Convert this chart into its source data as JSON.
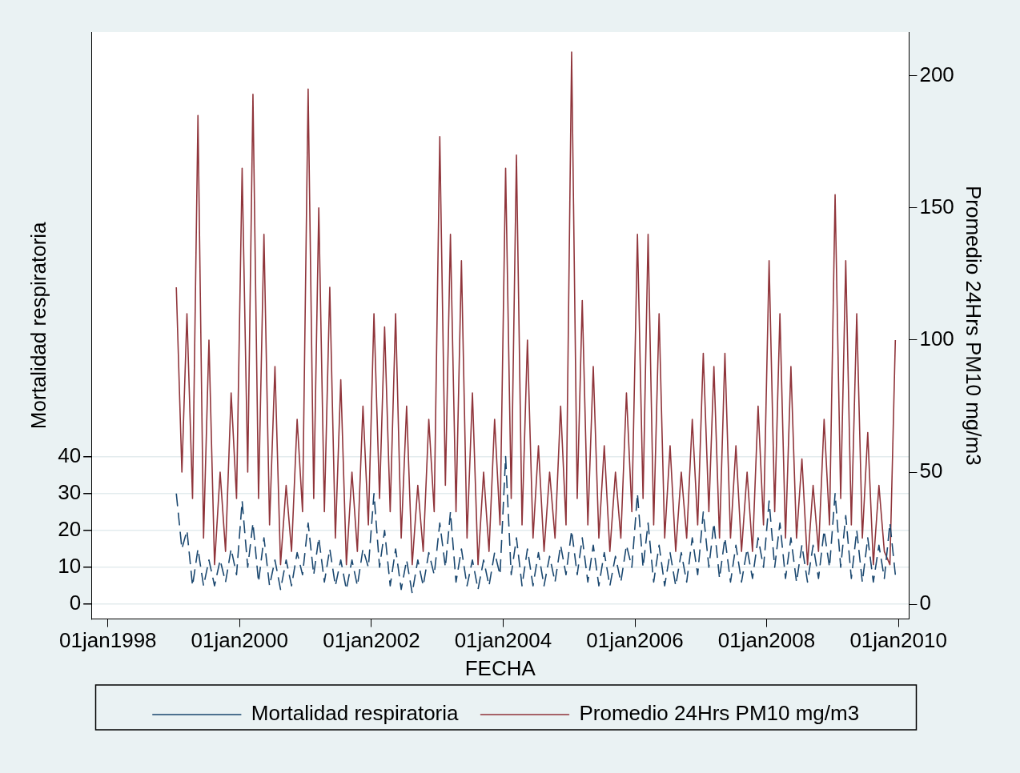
{
  "chart_data": {
    "type": "line",
    "xlabel": "FECHA",
    "ylabel": "Mortalidad respiratoria",
    "y2label": "Promedio 24Hrs PM10 mg/m3",
    "x": [
      "1999-01-15",
      "1999-02-15",
      "1999-03-15",
      "1999-04-15",
      "1999-05-15",
      "1999-06-15",
      "1999-07-15",
      "1999-08-15",
      "1999-09-15",
      "1999-10-15",
      "1999-11-15",
      "1999-12-15",
      "2000-01-15",
      "2000-02-15",
      "2000-03-15",
      "2000-04-15",
      "2000-05-15",
      "2000-06-15",
      "2000-07-15",
      "2000-08-15",
      "2000-09-15",
      "2000-10-15",
      "2000-11-15",
      "2000-12-15",
      "2001-01-15",
      "2001-02-15",
      "2001-03-15",
      "2001-04-15",
      "2001-05-15",
      "2001-06-15",
      "2001-07-15",
      "2001-08-15",
      "2001-09-15",
      "2001-10-15",
      "2001-11-15",
      "2001-12-15",
      "2002-01-15",
      "2002-02-15",
      "2002-03-15",
      "2002-04-15",
      "2002-05-15",
      "2002-06-15",
      "2002-07-15",
      "2002-08-15",
      "2002-09-15",
      "2002-10-15",
      "2002-11-15",
      "2002-12-15",
      "2003-01-15",
      "2003-02-15",
      "2003-03-15",
      "2003-04-15",
      "2003-05-15",
      "2003-06-15",
      "2003-07-15",
      "2003-08-15",
      "2003-09-15",
      "2003-10-15",
      "2003-11-15",
      "2003-12-15",
      "2004-01-15",
      "2004-02-15",
      "2004-03-15",
      "2004-04-15",
      "2004-05-15",
      "2004-06-15",
      "2004-07-15",
      "2004-08-15",
      "2004-09-15",
      "2004-10-15",
      "2004-11-15",
      "2004-12-15",
      "2005-01-15",
      "2005-02-15",
      "2005-03-15",
      "2005-04-15",
      "2005-05-15",
      "2005-06-15",
      "2005-07-15",
      "2005-08-15",
      "2005-09-15",
      "2005-10-15",
      "2005-11-15",
      "2005-12-15",
      "2006-01-15",
      "2006-02-15",
      "2006-03-15",
      "2006-04-15",
      "2006-05-15",
      "2006-06-15",
      "2006-07-15",
      "2006-08-15",
      "2006-09-15",
      "2006-10-15",
      "2006-11-15",
      "2006-12-15",
      "2007-01-15",
      "2007-02-15",
      "2007-03-15",
      "2007-04-15",
      "2007-05-15",
      "2007-06-15",
      "2007-07-15",
      "2007-08-15",
      "2007-09-15",
      "2007-10-15",
      "2007-11-15",
      "2007-12-15",
      "2008-01-15",
      "2008-02-15",
      "2008-03-15",
      "2008-04-15",
      "2008-05-15",
      "2008-06-15",
      "2008-07-15",
      "2008-08-15",
      "2008-09-15",
      "2008-10-15",
      "2008-11-15",
      "2008-12-15",
      "2009-01-15",
      "2009-02-15",
      "2009-03-15",
      "2009-04-15",
      "2009-05-15",
      "2009-06-15",
      "2009-07-15",
      "2009-08-15",
      "2009-09-15",
      "2009-10-15",
      "2009-11-15",
      "2009-12-15"
    ],
    "series": [
      {
        "name": "Mortalidad respiratoria",
        "color": "#1a476f",
        "line_style": "dashed",
        "values": [
          30,
          15,
          20,
          5,
          15,
          5,
          12,
          5,
          12,
          6,
          15,
          8,
          28,
          10,
          22,
          6,
          18,
          5,
          12,
          4,
          12,
          5,
          14,
          8,
          22,
          8,
          18,
          6,
          15,
          5,
          12,
          4,
          12,
          5,
          15,
          10,
          30,
          10,
          20,
          5,
          15,
          4,
          12,
          3,
          12,
          5,
          14,
          8,
          22,
          10,
          25,
          6,
          15,
          5,
          12,
          4,
          12,
          5,
          14,
          8,
          40,
          8,
          18,
          5,
          15,
          5,
          14,
          5,
          13,
          6,
          16,
          8,
          20,
          8,
          18,
          6,
          16,
          5,
          14,
          5,
          13,
          6,
          16,
          10,
          30,
          10,
          22,
          6,
          16,
          5,
          14,
          5,
          14,
          6,
          18,
          8,
          25,
          10,
          22,
          7,
          18,
          6,
          16,
          6,
          15,
          7,
          18,
          10,
          28,
          10,
          22,
          7,
          18,
          6,
          16,
          6,
          16,
          7,
          20,
          10,
          30,
          10,
          24,
          7,
          20,
          6,
          18,
          6,
          16,
          7,
          22,
          8
        ]
      },
      {
        "name": "Promedio 24Hrs PM10 mg/m3",
        "color": "#90353b",
        "axis": "y2",
        "line_style": "solid",
        "values": [
          120,
          50,
          110,
          40,
          185,
          25,
          100,
          15,
          50,
          20,
          80,
          40,
          165,
          50,
          193,
          40,
          140,
          30,
          90,
          15,
          45,
          20,
          70,
          35,
          195,
          40,
          150,
          35,
          120,
          25,
          85,
          15,
          50,
          20,
          75,
          30,
          110,
          40,
          105,
          35,
          110,
          25,
          75,
          15,
          45,
          20,
          70,
          35,
          177,
          45,
          140,
          35,
          130,
          25,
          80,
          15,
          50,
          20,
          70,
          30,
          165,
          40,
          170,
          30,
          100,
          25,
          60,
          20,
          50,
          25,
          75,
          30,
          209,
          40,
          115,
          30,
          90,
          25,
          60,
          20,
          50,
          25,
          80,
          35,
          140,
          40,
          140,
          30,
          110,
          25,
          60,
          20,
          50,
          25,
          70,
          30,
          95,
          35,
          90,
          25,
          95,
          25,
          60,
          20,
          50,
          20,
          75,
          30,
          130,
          35,
          110,
          25,
          90,
          25,
          55,
          15,
          45,
          20,
          70,
          30,
          155,
          40,
          130,
          30,
          110,
          25,
          65,
          15,
          45,
          20,
          15,
          100
        ]
      }
    ],
    "xlim": [
      "1997-10-01",
      "2010-03-01"
    ],
    "xticks": [
      {
        "value": "1998-01-01",
        "label": "01jan1998"
      },
      {
        "value": "2000-01-01",
        "label": "01jan2000"
      },
      {
        "value": "2002-01-01",
        "label": "01jan2002"
      },
      {
        "value": "2004-01-01",
        "label": "01jan2004"
      },
      {
        "value": "2006-01-01",
        "label": "01jan2006"
      },
      {
        "value": "2008-01-01",
        "label": "01jan2008"
      },
      {
        "value": "2010-01-01",
        "label": "01jan2010"
      }
    ],
    "ylim": [
      -4,
      155
    ],
    "yticks": [
      0,
      10,
      20,
      30,
      40
    ],
    "y2lim": [
      -5.6,
      216.6
    ],
    "y2ticks": [
      0,
      50,
      100,
      150,
      200
    ],
    "grid": "y",
    "legend": "bottom",
    "marker": "none"
  }
}
